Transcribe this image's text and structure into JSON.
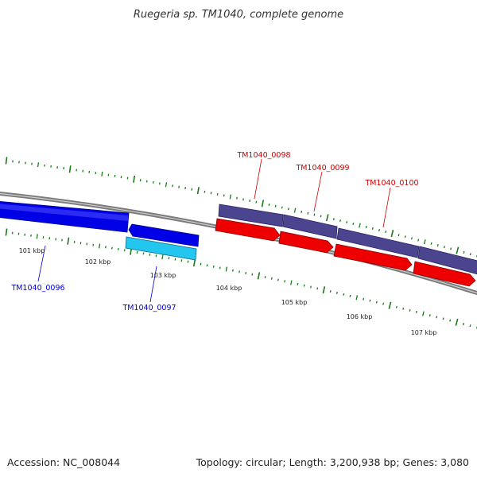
{
  "title": "Ruegeria sp. TM1040, complete genome",
  "footer": {
    "accession": "Accession: NC_008044",
    "summary": "Topology: circular; Length: 3,200,938 bp; Genes: 3,080"
  },
  "colors": {
    "backbone": "#7a7a7a",
    "tick": "#1a7a1a",
    "strand_minus_dark": "#0000e6",
    "strand_minus_light": "#22c6ee",
    "strand_plus_purple": "#4b4590",
    "strand_plus_red": "#ee0000",
    "label_blue": "#0000cc",
    "label_red": "#cc0000"
  },
  "scale": {
    "labels": [
      "101 kbp",
      "102 kbp",
      "103 kbp",
      "104 kbp",
      "105 kbp",
      "106 kbp",
      "107 kbp"
    ]
  },
  "genes": [
    {
      "id": "TM1040_0096",
      "label": "TM1040_0096",
      "strand": "minus",
      "color": "strand_minus_dark"
    },
    {
      "id": "TM1040_0097",
      "label": "TM1040_0097",
      "strand": "minus",
      "color": "strand_minus_dark"
    },
    {
      "id": "TM1040_0097b",
      "label": "",
      "strand": "minus",
      "color": "strand_minus_light"
    },
    {
      "id": "TM1040_0098",
      "label": "TM1040_0098",
      "strand": "plus",
      "color": "strand_plus_red"
    },
    {
      "id": "TM1040_0099",
      "label": "TM1040_0099",
      "strand": "plus",
      "color": "strand_plus_red"
    },
    {
      "id": "TM1040_0100",
      "label": "TM1040_0100",
      "strand": "plus",
      "color": "strand_plus_red"
    }
  ]
}
